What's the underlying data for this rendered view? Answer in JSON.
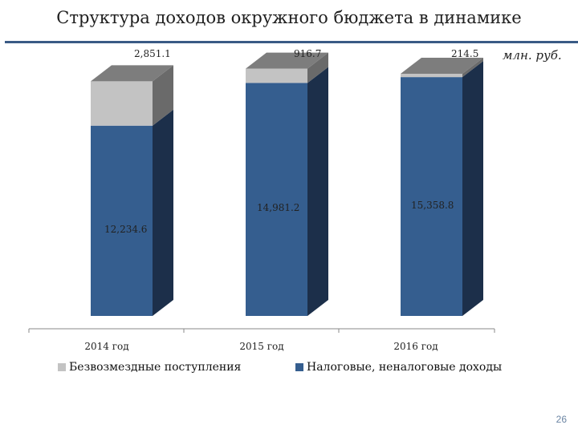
{
  "title": "Структура доходов окружного бюджета в динамике",
  "unit": "млн. руб.",
  "page_number": "26",
  "colors": {
    "tax_front": "#355e8f",
    "tax_side": "#1c2f4a",
    "grant_front": "#c3c3c3",
    "grant_side": "#6a6a6a",
    "top_face": "#7d7d7d",
    "rule": "#3a5a85"
  },
  "chart_data": {
    "type": "bar",
    "stacked": true,
    "three_d": true,
    "categories": [
      "2014 год",
      "2015 год",
      "2016 год"
    ],
    "series": [
      {
        "name": "Налоговые, неналоговые доходы",
        "values": [
          12234.6,
          14981.2,
          15358.8
        ],
        "labels": [
          "12,234.6",
          "14,981.2",
          "15,358.8"
        ]
      },
      {
        "name": "Безвозмездные поступления",
        "values": [
          2851.1,
          916.7,
          214.5
        ],
        "labels": [
          "2,851.1",
          "916.7",
          "214.5"
        ]
      }
    ],
    "ylim": [
      0,
      16500
    ],
    "grid": false,
    "legend": "bottom"
  }
}
